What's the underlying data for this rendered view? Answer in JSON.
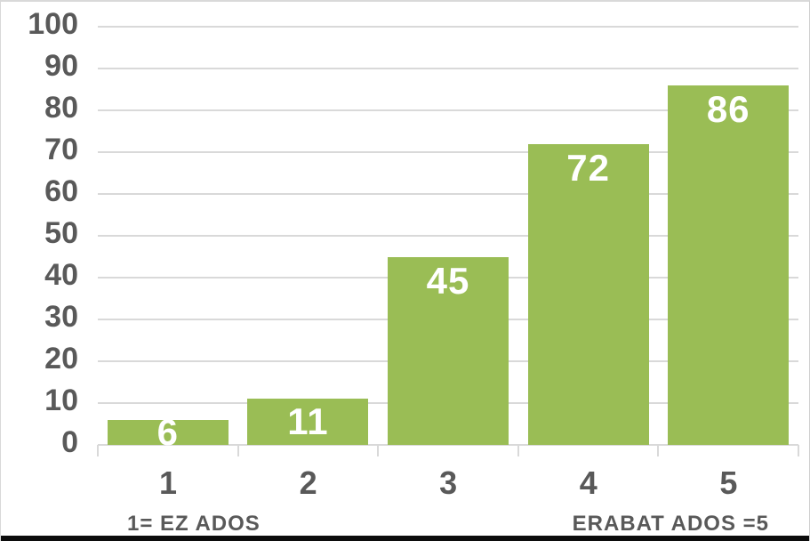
{
  "chart_data": {
    "type": "bar",
    "categories": [
      "1",
      "2",
      "3",
      "4",
      "5"
    ],
    "values": [
      6,
      11,
      45,
      72,
      86
    ],
    "y_ticks": [
      0,
      10,
      20,
      30,
      40,
      50,
      60,
      70,
      80,
      90,
      100
    ],
    "ylim": [
      0,
      100
    ],
    "title": "",
    "xlabel": "",
    "ylabel": "",
    "grid": "horizontal",
    "legend": "none",
    "bar_color": "#9abd55",
    "value_label_color": "#ffffff",
    "axis_text_color": "#595959",
    "gridline_color": "#d9d9d9"
  },
  "footer": {
    "left_label": "1= EZ ADOS",
    "right_label": "ERABAT ADOS =5"
  }
}
